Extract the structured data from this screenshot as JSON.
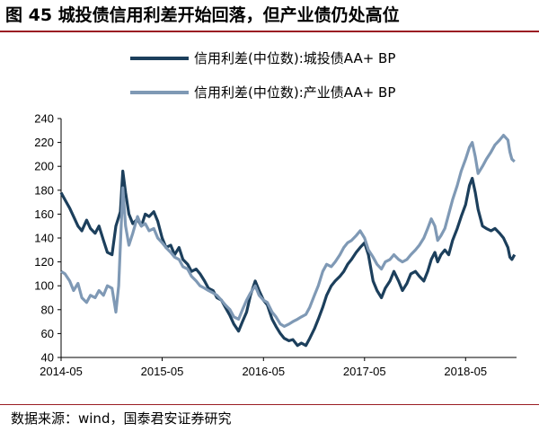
{
  "figure": {
    "title": "图 45 城投债信用利差开始回落，但产业债仍处高位",
    "source": "数据来源：wind，国泰君安证券研究"
  },
  "chart_data": {
    "type": "line",
    "title": "",
    "xlabel": "",
    "ylabel": "",
    "ylim": [
      40,
      240
    ],
    "yticks": [
      40,
      60,
      80,
      100,
      120,
      140,
      160,
      180,
      200,
      220,
      240
    ],
    "xticks": [
      "2014-05",
      "2015-05",
      "2016-05",
      "2017-05",
      "2018-05"
    ],
    "x_range": [
      "2014-05",
      "2018-11"
    ],
    "grid": false,
    "legend_position": "top",
    "series": [
      {
        "name": "信用利差(中位数):城投债AA+  BP",
        "color": "#1c3f5c",
        "points": [
          [
            "2014-05-01",
            178
          ],
          [
            "2014-05-15",
            172
          ],
          [
            "2014-06-01",
            165
          ],
          [
            "2014-06-15",
            158
          ],
          [
            "2014-07-01",
            150
          ],
          [
            "2014-07-15",
            146
          ],
          [
            "2014-08-01",
            155
          ],
          [
            "2014-08-15",
            148
          ],
          [
            "2014-09-01",
            144
          ],
          [
            "2014-09-15",
            150
          ],
          [
            "2014-10-01",
            138
          ],
          [
            "2014-10-15",
            128
          ],
          [
            "2014-11-01",
            126
          ],
          [
            "2014-11-15",
            150
          ],
          [
            "2014-12-01",
            162
          ],
          [
            "2014-12-10",
            196
          ],
          [
            "2014-12-20",
            178
          ],
          [
            "2015-01-01",
            160
          ],
          [
            "2015-01-15",
            152
          ],
          [
            "2015-02-01",
            156
          ],
          [
            "2015-02-15",
            150
          ],
          [
            "2015-03-01",
            160
          ],
          [
            "2015-03-15",
            158
          ],
          [
            "2015-04-01",
            162
          ],
          [
            "2015-04-15",
            154
          ],
          [
            "2015-05-01",
            140
          ],
          [
            "2015-05-15",
            132
          ],
          [
            "2015-06-01",
            134
          ],
          [
            "2015-06-15",
            126
          ],
          [
            "2015-07-01",
            132
          ],
          [
            "2015-07-15",
            122
          ],
          [
            "2015-08-01",
            118
          ],
          [
            "2015-08-15",
            112
          ],
          [
            "2015-09-01",
            114
          ],
          [
            "2015-09-15",
            110
          ],
          [
            "2015-10-01",
            104
          ],
          [
            "2015-10-15",
            98
          ],
          [
            "2015-11-01",
            96
          ],
          [
            "2015-11-15",
            90
          ],
          [
            "2015-12-01",
            88
          ],
          [
            "2015-12-15",
            82
          ],
          [
            "2016-01-01",
            75
          ],
          [
            "2016-01-15",
            68
          ],
          [
            "2016-02-01",
            62
          ],
          [
            "2016-02-15",
            70
          ],
          [
            "2016-03-01",
            78
          ],
          [
            "2016-03-15",
            92
          ],
          [
            "2016-04-01",
            104
          ],
          [
            "2016-04-15",
            96
          ],
          [
            "2016-05-01",
            88
          ],
          [
            "2016-05-15",
            84
          ],
          [
            "2016-06-01",
            72
          ],
          [
            "2016-06-15",
            66
          ],
          [
            "2016-07-01",
            60
          ],
          [
            "2016-07-15",
            56
          ],
          [
            "2016-08-01",
            54
          ],
          [
            "2016-08-15",
            55
          ],
          [
            "2016-09-01",
            50
          ],
          [
            "2016-09-15",
            52
          ],
          [
            "2016-10-01",
            50
          ],
          [
            "2016-10-15",
            56
          ],
          [
            "2016-11-01",
            64
          ],
          [
            "2016-11-15",
            72
          ],
          [
            "2016-12-01",
            82
          ],
          [
            "2016-12-15",
            92
          ],
          [
            "2017-01-01",
            100
          ],
          [
            "2017-01-15",
            104
          ],
          [
            "2017-02-01",
            108
          ],
          [
            "2017-02-15",
            112
          ],
          [
            "2017-03-01",
            118
          ],
          [
            "2017-03-15",
            122
          ],
          [
            "2017-04-01",
            128
          ],
          [
            "2017-04-15",
            132
          ],
          [
            "2017-05-01",
            136
          ],
          [
            "2017-05-15",
            126
          ],
          [
            "2017-06-01",
            104
          ],
          [
            "2017-06-15",
            96
          ],
          [
            "2017-07-01",
            90
          ],
          [
            "2017-07-15",
            98
          ],
          [
            "2017-08-01",
            104
          ],
          [
            "2017-08-15",
            112
          ],
          [
            "2017-09-01",
            104
          ],
          [
            "2017-09-15",
            96
          ],
          [
            "2017-10-01",
            102
          ],
          [
            "2017-10-15",
            110
          ],
          [
            "2017-11-01",
            112
          ],
          [
            "2017-11-15",
            108
          ],
          [
            "2017-12-01",
            104
          ],
          [
            "2017-12-15",
            112
          ],
          [
            "2017-12-28",
            122
          ],
          [
            "2018-01-10",
            128
          ],
          [
            "2018-01-20",
            120
          ],
          [
            "2018-02-01",
            126
          ],
          [
            "2018-02-15",
            130
          ],
          [
            "2018-03-01",
            126
          ],
          [
            "2018-03-15",
            138
          ],
          [
            "2018-04-01",
            148
          ],
          [
            "2018-04-15",
            158
          ],
          [
            "2018-05-01",
            168
          ],
          [
            "2018-05-15",
            184
          ],
          [
            "2018-05-25",
            190
          ],
          [
            "2018-06-05",
            178
          ],
          [
            "2018-06-15",
            164
          ],
          [
            "2018-07-01",
            150
          ],
          [
            "2018-07-15",
            148
          ],
          [
            "2018-08-01",
            146
          ],
          [
            "2018-08-15",
            148
          ],
          [
            "2018-09-01",
            144
          ],
          [
            "2018-09-15",
            140
          ],
          [
            "2018-10-01",
            132
          ],
          [
            "2018-10-08",
            124
          ],
          [
            "2018-10-15",
            122
          ],
          [
            "2018-10-25",
            126
          ]
        ]
      },
      {
        "name": "信用利差(中位数):产业债AA+  BP",
        "color": "#7f99b5",
        "points": [
          [
            "2014-05-01",
            112
          ],
          [
            "2014-05-15",
            110
          ],
          [
            "2014-06-01",
            104
          ],
          [
            "2014-06-15",
            96
          ],
          [
            "2014-07-01",
            102
          ],
          [
            "2014-07-15",
            90
          ],
          [
            "2014-08-01",
            86
          ],
          [
            "2014-08-15",
            92
          ],
          [
            "2014-09-01",
            90
          ],
          [
            "2014-09-15",
            96
          ],
          [
            "2014-10-01",
            92
          ],
          [
            "2014-10-15",
            100
          ],
          [
            "2014-11-01",
            98
          ],
          [
            "2014-11-15",
            78
          ],
          [
            "2014-11-25",
            100
          ],
          [
            "2014-12-10",
            182
          ],
          [
            "2014-12-20",
            150
          ],
          [
            "2015-01-01",
            134
          ],
          [
            "2015-01-15",
            144
          ],
          [
            "2015-02-01",
            158
          ],
          [
            "2015-02-15",
            150
          ],
          [
            "2015-03-01",
            152
          ],
          [
            "2015-03-15",
            146
          ],
          [
            "2015-04-01",
            148
          ],
          [
            "2015-04-15",
            140
          ],
          [
            "2015-05-01",
            136
          ],
          [
            "2015-05-15",
            132
          ],
          [
            "2015-06-01",
            128
          ],
          [
            "2015-06-15",
            124
          ],
          [
            "2015-07-01",
            122
          ],
          [
            "2015-07-15",
            116
          ],
          [
            "2015-08-01",
            114
          ],
          [
            "2015-08-15",
            108
          ],
          [
            "2015-09-01",
            104
          ],
          [
            "2015-09-15",
            100
          ],
          [
            "2015-10-01",
            98
          ],
          [
            "2015-10-15",
            96
          ],
          [
            "2015-11-01",
            94
          ],
          [
            "2015-11-15",
            92
          ],
          [
            "2015-12-01",
            88
          ],
          [
            "2015-12-15",
            84
          ],
          [
            "2016-01-01",
            80
          ],
          [
            "2016-01-15",
            74
          ],
          [
            "2016-02-01",
            72
          ],
          [
            "2016-02-15",
            80
          ],
          [
            "2016-03-01",
            88
          ],
          [
            "2016-03-15",
            94
          ],
          [
            "2016-04-01",
            100
          ],
          [
            "2016-04-15",
            92
          ],
          [
            "2016-05-01",
            88
          ],
          [
            "2016-05-15",
            86
          ],
          [
            "2016-06-01",
            78
          ],
          [
            "2016-06-15",
            74
          ],
          [
            "2016-07-01",
            68
          ],
          [
            "2016-07-15",
            66
          ],
          [
            "2016-08-01",
            68
          ],
          [
            "2016-08-15",
            70
          ],
          [
            "2016-09-01",
            72
          ],
          [
            "2016-09-15",
            74
          ],
          [
            "2016-10-01",
            76
          ],
          [
            "2016-10-15",
            82
          ],
          [
            "2016-11-01",
            92
          ],
          [
            "2016-11-15",
            100
          ],
          [
            "2016-12-01",
            112
          ],
          [
            "2016-12-15",
            118
          ],
          [
            "2017-01-01",
            116
          ],
          [
            "2017-01-15",
            120
          ],
          [
            "2017-02-01",
            126
          ],
          [
            "2017-02-15",
            132
          ],
          [
            "2017-03-01",
            136
          ],
          [
            "2017-03-15",
            138
          ],
          [
            "2017-04-01",
            142
          ],
          [
            "2017-04-15",
            146
          ],
          [
            "2017-05-01",
            140
          ],
          [
            "2017-05-15",
            130
          ],
          [
            "2017-06-01",
            124
          ],
          [
            "2017-06-15",
            118
          ],
          [
            "2017-07-01",
            114
          ],
          [
            "2017-07-15",
            120
          ],
          [
            "2017-08-01",
            122
          ],
          [
            "2017-08-15",
            126
          ],
          [
            "2017-09-01",
            122
          ],
          [
            "2017-09-15",
            120
          ],
          [
            "2017-10-01",
            122
          ],
          [
            "2017-10-15",
            126
          ],
          [
            "2017-11-01",
            130
          ],
          [
            "2017-11-15",
            134
          ],
          [
            "2017-12-01",
            140
          ],
          [
            "2017-12-15",
            148
          ],
          [
            "2017-12-28",
            156
          ],
          [
            "2018-01-10",
            150
          ],
          [
            "2018-01-20",
            138
          ],
          [
            "2018-02-01",
            142
          ],
          [
            "2018-02-15",
            148
          ],
          [
            "2018-03-01",
            160
          ],
          [
            "2018-03-15",
            172
          ],
          [
            "2018-04-01",
            184
          ],
          [
            "2018-04-15",
            196
          ],
          [
            "2018-05-01",
            206
          ],
          [
            "2018-05-15",
            216
          ],
          [
            "2018-05-25",
            220
          ],
          [
            "2018-06-05",
            208
          ],
          [
            "2018-06-15",
            194
          ],
          [
            "2018-07-01",
            200
          ],
          [
            "2018-07-15",
            206
          ],
          [
            "2018-08-01",
            212
          ],
          [
            "2018-08-15",
            218
          ],
          [
            "2018-09-01",
            222
          ],
          [
            "2018-09-15",
            226
          ],
          [
            "2018-10-01",
            222
          ],
          [
            "2018-10-08",
            212
          ],
          [
            "2018-10-15",
            206
          ],
          [
            "2018-10-25",
            204
          ]
        ]
      }
    ]
  }
}
